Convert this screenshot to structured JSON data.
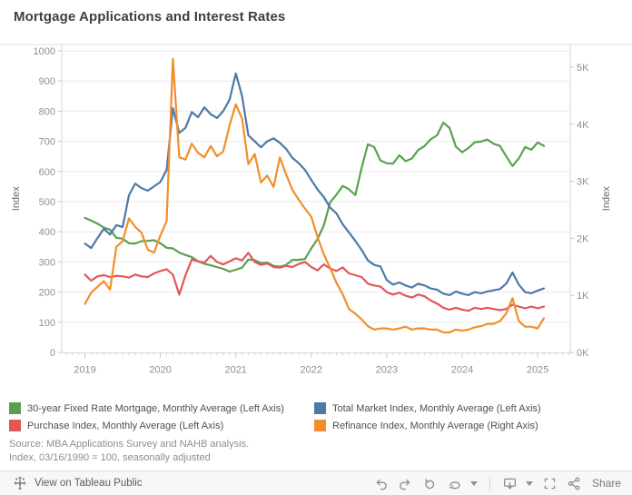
{
  "title": "Mortgage Applications and Interest Rates",
  "chart_data": {
    "type": "line",
    "x_start": "2019-01",
    "x_end": "2025-02",
    "x_tick_labels": [
      "2019",
      "2020",
      "2021",
      "2022",
      "2023",
      "2024",
      "2025"
    ],
    "grid": true,
    "legend_position": "bottom",
    "left_axis": {
      "label": "Index",
      "min": 0,
      "max": 1000,
      "tick_values": [
        0,
        100,
        200,
        300,
        400,
        500,
        600,
        700,
        800,
        900,
        1000
      ],
      "ticks": [
        "0",
        "100",
        "200",
        "300",
        "400",
        "500",
        "600",
        "700",
        "800",
        "900",
        "1000"
      ]
    },
    "right_axis": {
      "label": "Index",
      "min": 0,
      "max": 5000,
      "tick_values": [
        0,
        1000,
        2000,
        3000,
        4000,
        5000
      ],
      "ticks": [
        "0K",
        "1K",
        "2K",
        "3K",
        "4K",
        "5K"
      ]
    },
    "series": [
      {
        "name": "30-year Fixed Rate Mortgage, Monthly Average (Left Axis)",
        "color": "#59a14f",
        "axis": "left",
        "values": [
          446,
          437,
          427,
          414,
          407,
          380,
          377,
          362,
          361,
          369,
          370,
          372,
          362,
          347,
          345,
          331,
          323,
          316,
          302,
          294,
          289,
          283,
          277,
          268,
          274,
          281,
          308,
          306,
          296,
          298,
          287,
          284,
          290,
          307,
          307,
          310,
          345,
          376,
          421,
          498,
          523,
          552,
          541,
          522,
          611,
          690,
          681,
          636,
          627,
          626,
          654,
          634,
          643,
          671,
          684,
          707,
          720,
          762,
          744,
          682,
          664,
          678,
          697,
          699,
          706,
          692,
          685,
          650,
          618,
          643,
          681,
          672,
          696,
          685
        ]
      },
      {
        "name": "Total Market Index, Monthly Average (Left Axis)",
        "color": "#4e79a7",
        "axis": "left",
        "values": [
          361,
          346,
          379,
          410,
          391,
          422,
          416,
          521,
          560,
          545,
          536,
          551,
          565,
          605,
          810,
          728,
          745,
          797,
          780,
          813,
          790,
          777,
          800,
          838,
          925,
          850,
          720,
          700,
          680,
          700,
          710,
          695,
          675,
          645,
          628,
          605,
          572,
          540,
          515,
          480,
          461,
          425,
          398,
          370,
          340,
          305,
          290,
          285,
          240,
          225,
          232,
          222,
          215,
          228,
          222,
          212,
          208,
          195,
          190,
          202,
          195,
          190,
          200,
          196,
          202,
          206,
          210,
          228,
          265,
          225,
          200,
          196,
          205,
          212
        ]
      },
      {
        "name": "Purchase Index, Monthly Average (Left Axis)",
        "color": "#e15759",
        "axis": "left",
        "values": [
          258,
          238,
          252,
          256,
          250,
          254,
          252,
          248,
          258,
          252,
          250,
          262,
          270,
          276,
          258,
          192,
          256,
          308,
          302,
          298,
          320,
          300,
          292,
          302,
          312,
          305,
          330,
          300,
          290,
          295,
          283,
          281,
          287,
          283,
          293,
          300,
          283,
          272,
          292,
          278,
          270,
          282,
          262,
          256,
          250,
          228,
          222,
          218,
          200,
          192,
          198,
          188,
          182,
          192,
          186,
          172,
          162,
          148,
          142,
          148,
          142,
          138,
          148,
          144,
          148,
          144,
          140,
          144,
          158,
          152,
          146,
          152,
          146,
          152
        ]
      },
      {
        "name": "Refinance Index, Monthly Average (Right Axis)",
        "color": "#f28e2b",
        "axis": "right",
        "values": [
          850,
          1050,
          1150,
          1250,
          1100,
          1850,
          1950,
          2350,
          2200,
          2100,
          1800,
          1750,
          2050,
          2300,
          5150,
          3420,
          3380,
          3660,
          3500,
          3420,
          3620,
          3440,
          3520,
          3980,
          4350,
          4100,
          3300,
          3480,
          2980,
          3100,
          2900,
          3420,
          3120,
          2850,
          2680,
          2520,
          2380,
          2020,
          1720,
          1480,
          1220,
          1020,
          760,
          680,
          580,
          460,
          400,
          420,
          420,
          400,
          420,
          450,
          400,
          420,
          420,
          400,
          400,
          350,
          350,
          400,
          380,
          400,
          440,
          460,
          500,
          500,
          550,
          680,
          950,
          550,
          450,
          450,
          420,
          600
        ]
      }
    ]
  },
  "source": {
    "line1": "Source: MBA Applications Survey and NAHB analysis.",
    "line2": "Index, 03/16/1990 = 100, seasonally adjusted"
  },
  "footer": {
    "view_on_label": "View on Tableau Public",
    "share_label": "Share"
  }
}
